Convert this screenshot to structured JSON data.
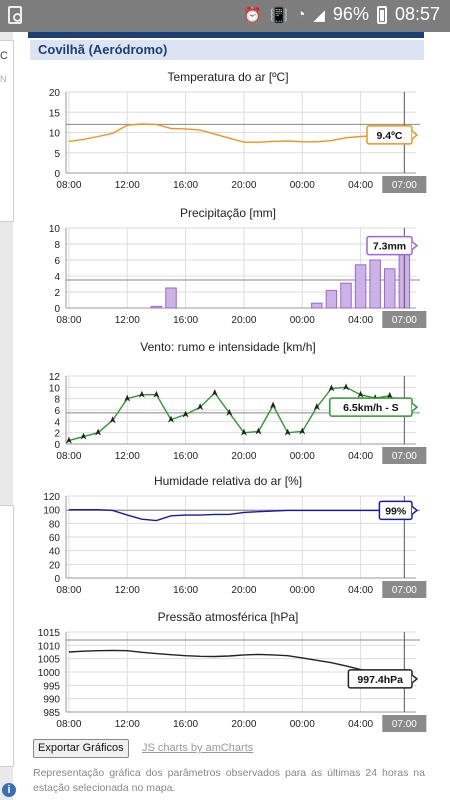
{
  "status_bar": {
    "battery": "96%",
    "time": "08:57",
    "icons": [
      "image-notification-icon",
      "alarm-icon",
      "vibrate-icon",
      "wifi-icon",
      "cellular-signal-icon",
      "battery-icon"
    ]
  },
  "left_panel": {
    "fragment_1": "C",
    "fragment_2": "N"
  },
  "station": {
    "title": "Covilhã (Aeródromo)"
  },
  "colors": {
    "header": "#1c3f74",
    "temperature": "#f0941e",
    "precipitation_fill": "#cbb3e6",
    "precipitation_stroke": "#9b67d6",
    "wind": "#2e9a2e",
    "humidity": "#1a1aa8",
    "pressure": "#222222"
  },
  "x_axis_labels": [
    "08:00",
    "12:00",
    "16:00",
    "20:00",
    "00:00",
    "04:00"
  ],
  "cursor_label": "07:00",
  "charts": {
    "temperature": {
      "title": "Temperatura do ar [ºC]",
      "tooltip": "9.4ºC"
    },
    "precipitation": {
      "title": "Precipitação [mm]",
      "tooltip": "7.3mm"
    },
    "wind": {
      "title": "Vento: rumo e intensidade [km/h]",
      "tooltip": "6.5km/h - S"
    },
    "humidity": {
      "title": "Humidade relativa do ar [%]",
      "tooltip": "99%"
    },
    "pressure": {
      "title": "Pressão atmosférica [hPa]",
      "tooltip": "997.4hPa"
    }
  },
  "footer": {
    "export_button": "Exportar Gráficos",
    "credit_link": "JS charts by amCharts",
    "description": "Representação gráfica dos parâmetros observados para as últimas 24 horas na estação selecionada no mapa."
  },
  "chart_data": [
    {
      "type": "line",
      "title": "Temperatura do ar [ºC]",
      "x": [
        "08:00",
        "09:00",
        "10:00",
        "11:00",
        "12:00",
        "13:00",
        "14:00",
        "15:00",
        "16:00",
        "17:00",
        "18:00",
        "19:00",
        "20:00",
        "21:00",
        "22:00",
        "23:00",
        "00:00",
        "01:00",
        "02:00",
        "03:00",
        "04:00",
        "05:00",
        "06:00",
        "07:00"
      ],
      "values": [
        7.8,
        8.3,
        9.0,
        9.8,
        11.8,
        12.1,
        12.0,
        11.0,
        10.9,
        10.6,
        9.6,
        8.6,
        7.6,
        7.6,
        7.8,
        7.9,
        7.7,
        7.7,
        8.0,
        8.7,
        9.0,
        9.2,
        9.3,
        9.4
      ],
      "ylim": [
        0,
        20
      ],
      "yticks": [
        0,
        5,
        10,
        15,
        20
      ],
      "guide": 12
    },
    {
      "type": "bar",
      "title": "Precipitação [mm]",
      "x": [
        "08:00",
        "09:00",
        "10:00",
        "11:00",
        "12:00",
        "13:00",
        "14:00",
        "15:00",
        "16:00",
        "17:00",
        "18:00",
        "19:00",
        "20:00",
        "21:00",
        "22:00",
        "23:00",
        "00:00",
        "01:00",
        "02:00",
        "03:00",
        "04:00",
        "05:00",
        "06:00",
        "07:00"
      ],
      "values": [
        0,
        0,
        0,
        0,
        0,
        0,
        0.2,
        2.5,
        0,
        0,
        0,
        0,
        0,
        0,
        0,
        0,
        0,
        0.6,
        2.2,
        3.1,
        5.4,
        6.0,
        4.9,
        7.3
      ],
      "ylim": [
        0,
        10
      ],
      "yticks": [
        0,
        2,
        4,
        6,
        8,
        10
      ],
      "guide": 3.5
    },
    {
      "type": "line",
      "title": "Vento: rumo e intensidade [km/h]",
      "x": [
        "08:00",
        "09:00",
        "10:00",
        "11:00",
        "12:00",
        "13:00",
        "14:00",
        "15:00",
        "16:00",
        "17:00",
        "18:00",
        "19:00",
        "20:00",
        "21:00",
        "22:00",
        "23:00",
        "00:00",
        "01:00",
        "02:00",
        "03:00",
        "04:00",
        "05:00",
        "06:00",
        "07:00"
      ],
      "values": [
        0.6,
        1.3,
        2.0,
        4.2,
        8.0,
        8.7,
        8.7,
        4.3,
        5.2,
        6.5,
        9.0,
        5.5,
        2.0,
        2.2,
        6.8,
        2.0,
        2.2,
        6.5,
        9.8,
        10.0,
        8.7,
        8.1,
        8.5,
        6.5
      ],
      "ylim": [
        0,
        12
      ],
      "yticks": [
        0,
        2,
        4,
        6,
        8,
        10,
        12
      ],
      "guide": 5.5
    },
    {
      "type": "line",
      "title": "Humidade relativa do ar [%]",
      "x": [
        "08:00",
        "09:00",
        "10:00",
        "11:00",
        "12:00",
        "13:00",
        "14:00",
        "15:00",
        "16:00",
        "17:00",
        "18:00",
        "19:00",
        "20:00",
        "21:00",
        "22:00",
        "23:00",
        "00:00",
        "01:00",
        "02:00",
        "03:00",
        "04:00",
        "05:00",
        "06:00",
        "07:00"
      ],
      "values": [
        100,
        100,
        100,
        99,
        92,
        86,
        84,
        91,
        92,
        92,
        93,
        93,
        96,
        97,
        98,
        99,
        99,
        99,
        99,
        99,
        99,
        99,
        99,
        99
      ],
      "ylim": [
        0,
        120
      ],
      "yticks": [
        0,
        20,
        40,
        60,
        80,
        100,
        120
      ],
      "guide": 99
    },
    {
      "type": "line",
      "title": "Pressão atmosférica [hPa]",
      "x": [
        "08:00",
        "09:00",
        "10:00",
        "11:00",
        "12:00",
        "13:00",
        "14:00",
        "15:00",
        "16:00",
        "17:00",
        "18:00",
        "19:00",
        "20:00",
        "21:00",
        "22:00",
        "23:00",
        "00:00",
        "01:00",
        "02:00",
        "03:00",
        "04:00",
        "05:00",
        "06:00",
        "07:00"
      ],
      "values": [
        1007.5,
        1007.8,
        1008.0,
        1008.1,
        1008.0,
        1007.4,
        1006.9,
        1006.5,
        1006.1,
        1005.9,
        1005.8,
        1006.0,
        1006.4,
        1006.6,
        1006.4,
        1006.1,
        1005.3,
        1004.4,
        1003.5,
        1002.3,
        1000.9,
        999.4,
        998.2,
        997.4
      ],
      "ylim": [
        985,
        1015
      ],
      "yticks": [
        985,
        990,
        995,
        1000,
        1005,
        1010,
        1015
      ],
      "guide": 1012
    }
  ]
}
